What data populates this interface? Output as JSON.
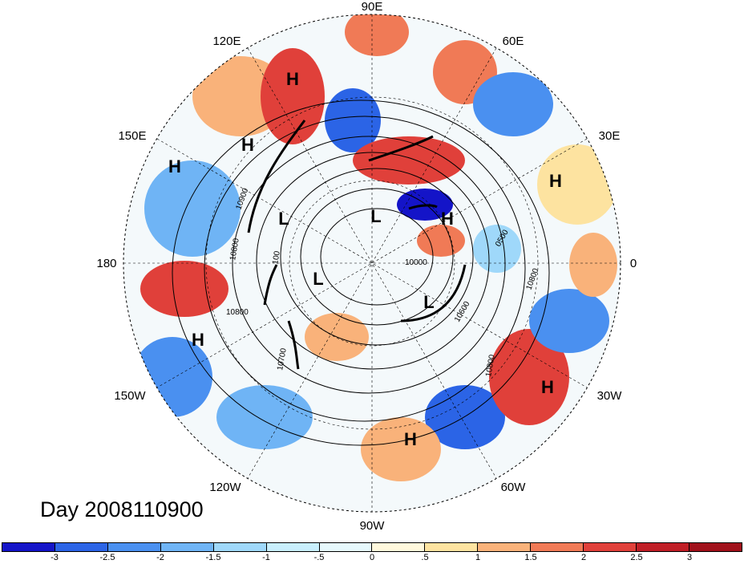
{
  "title": "Day 2008110900",
  "longitude_labels": {
    "top": "90E",
    "top_right": "60E",
    "right_upper": "30E",
    "right": "0",
    "right_lower": "30W",
    "bottom_right": "60W",
    "bottom": "90W",
    "bottom_left": "120W",
    "left_lower": "150W",
    "left": "180",
    "left_upper": "150E",
    "top_left": "120E"
  },
  "pressure_centers": [
    {
      "type": "H",
      "text": "H"
    },
    {
      "type": "H",
      "text": "H"
    },
    {
      "type": "H",
      "text": "H"
    },
    {
      "type": "H",
      "text": "H"
    },
    {
      "type": "H",
      "text": "H"
    },
    {
      "type": "H",
      "text": "H"
    },
    {
      "type": "H",
      "text": "H"
    },
    {
      "type": "H",
      "text": "H"
    },
    {
      "type": "L",
      "text": "L"
    },
    {
      "type": "L",
      "text": "L"
    },
    {
      "type": "L",
      "text": "L"
    },
    {
      "type": "L",
      "text": "L"
    }
  ],
  "contour_labels": [
    "10900",
    "10800",
    "10800",
    "100",
    "10000",
    "10600",
    "10800",
    "10800",
    "0500",
    "10700"
  ],
  "colorbar": {
    "labels": [
      "-3",
      "-2.5",
      "-2",
      "-1.5",
      "-1",
      "-.5",
      "0",
      ".5",
      "1",
      "1.5",
      "2",
      "2.5",
      "3"
    ],
    "colors": [
      "#1414c8",
      "#2b64e6",
      "#4a90f0",
      "#6fb4f5",
      "#9fd8fa",
      "#c8eefc",
      "#e6f8fc",
      "#fff8dc",
      "#fde3a0",
      "#f9b27a",
      "#f07a56",
      "#e0403a",
      "#c01e26",
      "#a0101a"
    ]
  }
}
